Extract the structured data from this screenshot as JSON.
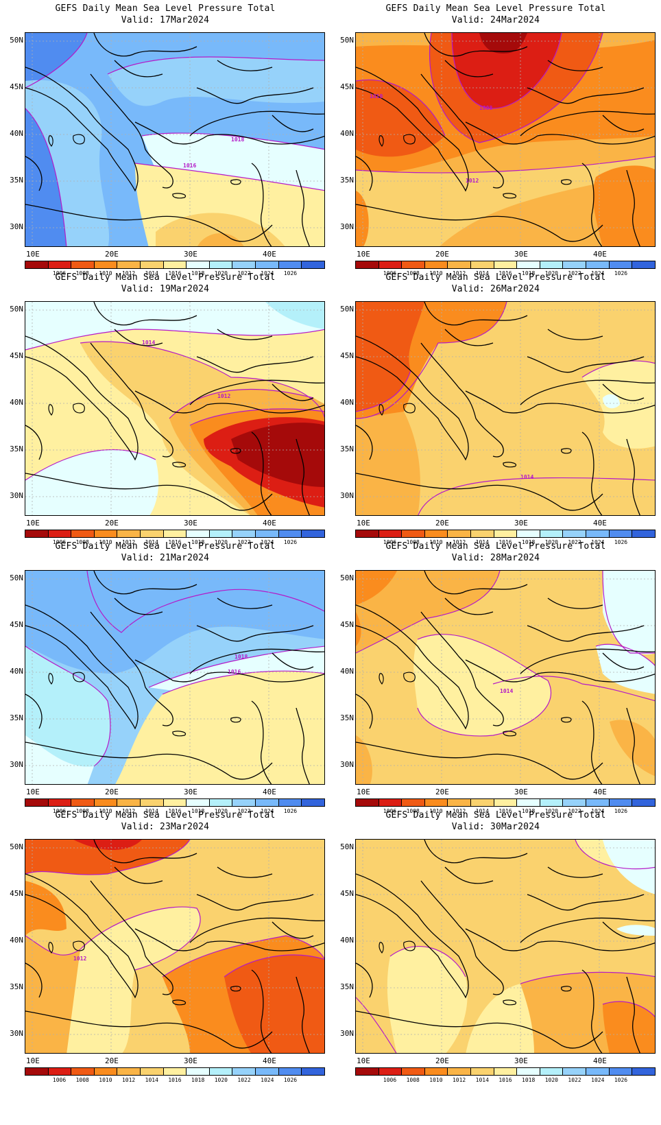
{
  "chart_data": [
    {
      "type": "heatmap",
      "title": "GEFS Daily Mean Sea Level Pressure Total",
      "valid": "Valid: 17Mar2024",
      "contour_labels": [
        "1018",
        "1016"
      ]
    },
    {
      "type": "heatmap",
      "title": "GEFS Daily Mean Sea Level Pressure Total",
      "valid": "Valid: 24Mar2024",
      "contour_labels": [
        "1010",
        "1008",
        "1012"
      ]
    },
    {
      "type": "heatmap",
      "title": "GEFS Daily Mean Sea Level Pressure Total",
      "valid": "Valid: 19Mar2024",
      "contour_labels": [
        "1014",
        "1012"
      ]
    },
    {
      "type": "heatmap",
      "title": "GEFS Daily Mean Sea Level Pressure Total",
      "valid": "Valid: 26Mar2024",
      "contour_labels": [
        "1014"
      ]
    },
    {
      "type": "heatmap",
      "title": "GEFS Daily Mean Sea Level Pressure Total",
      "valid": "Valid: 21Mar2024",
      "contour_labels": [
        "1018",
        "1016"
      ]
    },
    {
      "type": "heatmap",
      "title": "GEFS Daily Mean Sea Level Pressure Total",
      "valid": "Valid: 28Mar2024",
      "contour_labels": [
        "1014"
      ]
    },
    {
      "type": "heatmap",
      "title": "GEFS Daily Mean Sea Level Pressure Total",
      "valid": "Valid: 23Mar2024",
      "contour_labels": [
        "1012"
      ]
    },
    {
      "type": "heatmap",
      "title": "GEFS Daily Mean Sea Level Pressure Total",
      "valid": "Valid: 30Mar2024",
      "contour_labels": []
    }
  ],
  "axes": {
    "lat_labels": [
      "50N",
      "45N",
      "40N",
      "35N",
      "30N"
    ],
    "lon_labels": [
      "10E",
      "20E",
      "30E",
      "40E"
    ]
  },
  "colorbar": {
    "ticks": [
      "1006",
      "1008",
      "1010",
      "1012",
      "1014",
      "1016",
      "1018",
      "1020",
      "1022",
      "1024",
      "1026"
    ],
    "colors": [
      "#a50a0a",
      "#dc1e14",
      "#f05a14",
      "#fa8c1e",
      "#fab446",
      "#fad26e",
      "#fff0a0",
      "#e6ffff",
      "#b4f0fa",
      "#96d2fa",
      "#78b9fa",
      "#508cf0",
      "#3264dc"
    ]
  },
  "colors": {
    "contour": "#b419c8",
    "coast": "#000000",
    "grid": "#b0b0b0"
  }
}
